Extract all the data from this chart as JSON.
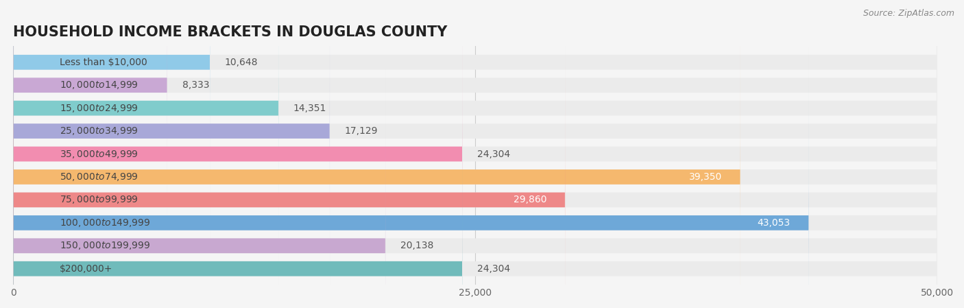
{
  "title": "HOUSEHOLD INCOME BRACKETS IN DOUGLAS COUNTY",
  "source": "Source: ZipAtlas.com",
  "categories": [
    "Less than $10,000",
    "$10,000 to $14,999",
    "$15,000 to $24,999",
    "$25,000 to $34,999",
    "$35,000 to $49,999",
    "$50,000 to $74,999",
    "$75,000 to $99,999",
    "$100,000 to $149,999",
    "$150,000 to $199,999",
    "$200,000+"
  ],
  "values": [
    10648,
    8333,
    14351,
    17129,
    24304,
    39350,
    29860,
    43053,
    20138,
    24304
  ],
  "colors": [
    "#90CAE8",
    "#C9A8D4",
    "#80CCCC",
    "#A8A8D8",
    "#F28DB0",
    "#F5B86E",
    "#EE8888",
    "#6EA8D8",
    "#C8A8D0",
    "#70BBBB"
  ],
  "xlim": [
    0,
    50000
  ],
  "xticks": [
    0,
    25000,
    50000
  ],
  "xtick_labels": [
    "0",
    "25,000",
    "50,000"
  ],
  "value_label_color_outside": "#555555",
  "value_label_color_inside": "#ffffff",
  "background_color": "#f5f5f5",
  "bar_bg_color": "#ebebeb",
  "title_fontsize": 15,
  "label_fontsize": 10,
  "value_fontsize": 10,
  "source_fontsize": 9
}
